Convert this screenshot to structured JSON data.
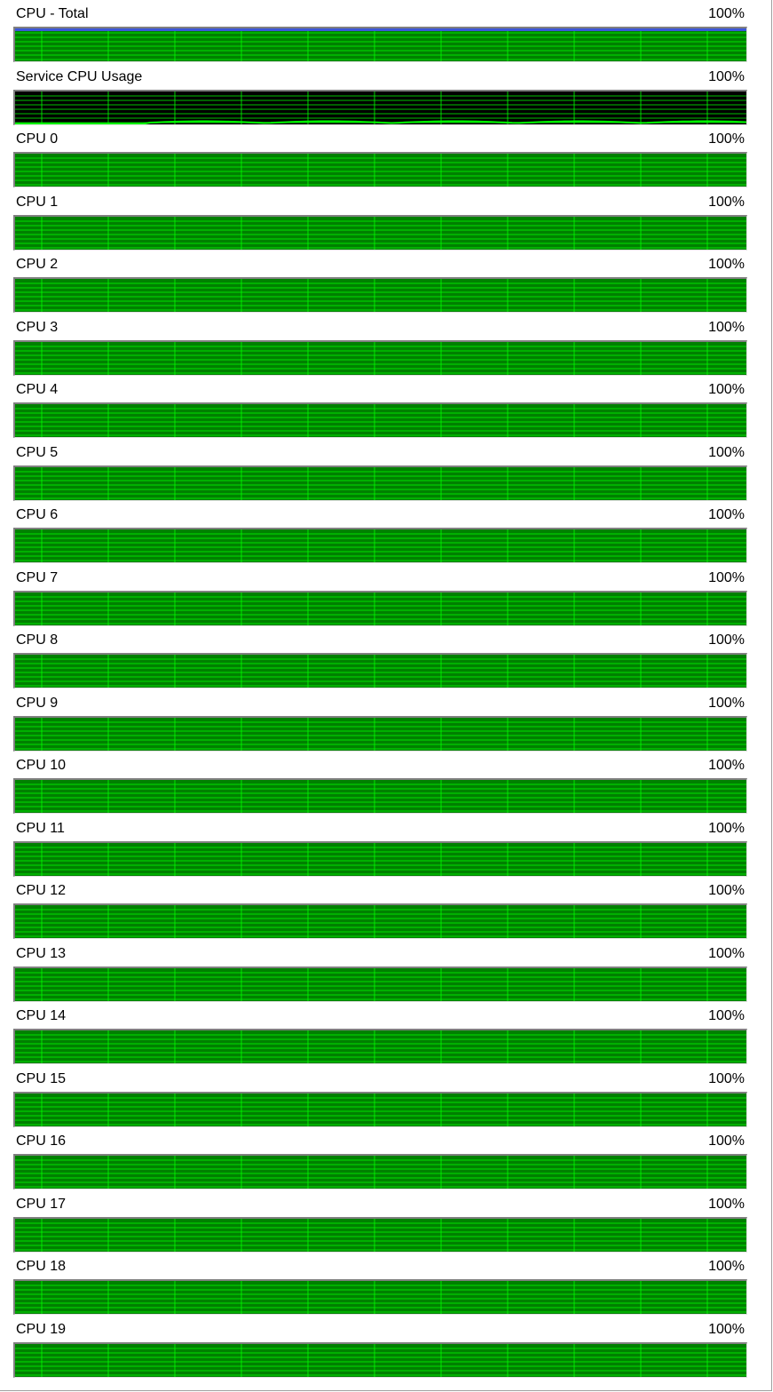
{
  "colors": {
    "full_fill": "#008000",
    "grid": "#00ff00",
    "empty_bg": "#000000",
    "total_top_line": "#3c56d8"
  },
  "meters": [
    {
      "label": "CPU - Total",
      "percent": "100%",
      "usage": 1.0
    },
    {
      "label": "Service CPU Usage",
      "percent": "100%",
      "usage": 0.03
    },
    {
      "label": "CPU 0",
      "percent": "100%",
      "usage": 1.0
    },
    {
      "label": "CPU 1",
      "percent": "100%",
      "usage": 1.0
    },
    {
      "label": "CPU 2",
      "percent": "100%",
      "usage": 1.0
    },
    {
      "label": "CPU 3",
      "percent": "100%",
      "usage": 1.0
    },
    {
      "label": "CPU 4",
      "percent": "100%",
      "usage": 1.0
    },
    {
      "label": "CPU 5",
      "percent": "100%",
      "usage": 1.0
    },
    {
      "label": "CPU 6",
      "percent": "100%",
      "usage": 1.0
    },
    {
      "label": "CPU 7",
      "percent": "100%",
      "usage": 1.0
    },
    {
      "label": "CPU 8",
      "percent": "100%",
      "usage": 1.0
    },
    {
      "label": "CPU 9",
      "percent": "100%",
      "usage": 1.0
    },
    {
      "label": "CPU 10",
      "percent": "100%",
      "usage": 1.0
    },
    {
      "label": "CPU 11",
      "percent": "100%",
      "usage": 1.0
    },
    {
      "label": "CPU 12",
      "percent": "100%",
      "usage": 1.0
    },
    {
      "label": "CPU 13",
      "percent": "100%",
      "usage": 1.0
    },
    {
      "label": "CPU 14",
      "percent": "100%",
      "usage": 1.0
    },
    {
      "label": "CPU 15",
      "percent": "100%",
      "usage": 1.0
    },
    {
      "label": "CPU 16",
      "percent": "100%",
      "usage": 1.0
    },
    {
      "label": "CPU 17",
      "percent": "100%",
      "usage": 1.0
    },
    {
      "label": "CPU 18",
      "percent": "100%",
      "usage": 1.0
    },
    {
      "label": "CPU 19",
      "percent": "100%",
      "usage": 1.0
    }
  ]
}
